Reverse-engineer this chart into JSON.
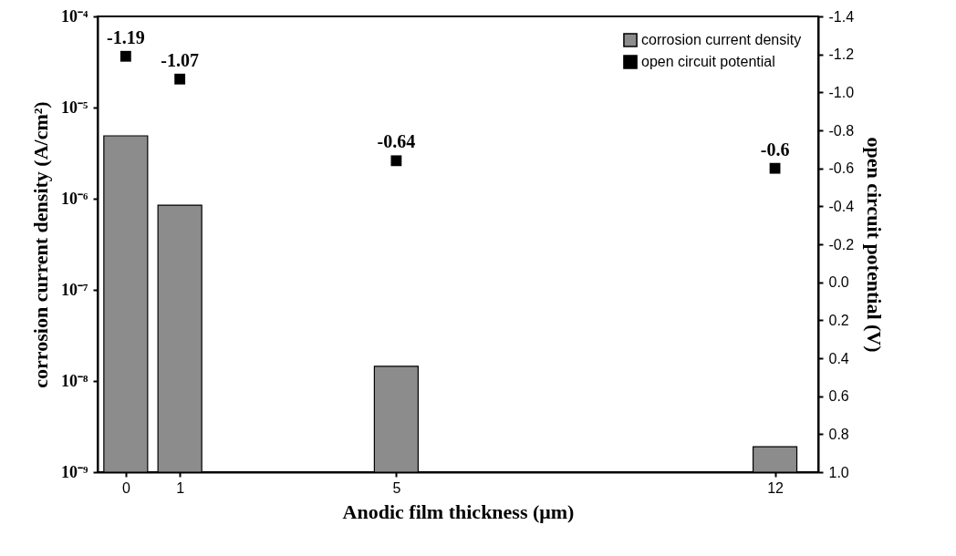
{
  "chart_data": {
    "type": "bar",
    "xlabel": "Anodic film thickness (μm)",
    "ylabel": "corrosion current density (A/cm²)",
    "y2label": "open circuit potential (V)",
    "x": [
      0,
      1,
      5,
      12
    ],
    "series": [
      {
        "name": "corrosion current density",
        "color": "#8c8c8c",
        "values": [
          4.9e-06,
          8.5e-07,
          1.45e-08,
          1.9e-09
        ]
      },
      {
        "name": "open circuit potential",
        "type": "scatter",
        "axis": "y2",
        "color": "#000000",
        "marker": "square",
        "data_labels": true,
        "values": [
          -1.19,
          -1.07,
          -0.64,
          -0.6
        ]
      }
    ],
    "xlim": [
      -0.52,
      12.8
    ],
    "xticks": [
      0,
      1,
      5,
      12
    ],
    "log": "y",
    "ylim": [
      1e-09,
      0.0001
    ],
    "yticks": [
      {
        "value": 1e-09,
        "label": "10⁻⁹"
      },
      {
        "value": 1e-08,
        "label": "10⁻⁸"
      },
      {
        "value": 1e-07,
        "label": "10⁻⁷"
      },
      {
        "value": 1e-06,
        "label": "10⁻⁶"
      },
      {
        "value": 1e-05,
        "label": "10⁻⁵"
      },
      {
        "value": 0.0001,
        "label": "10⁻⁴"
      }
    ],
    "y2lim": [
      1.0,
      -1.4
    ],
    "y2ticks": [
      {
        "value": 1.0,
        "label": "1.0"
      },
      0.8,
      0.6,
      0.4,
      0.2,
      {
        "value": 0,
        "label": "0.0"
      },
      -0.2,
      -0.4,
      -0.6,
      -0.8,
      {
        "value": -1.0,
        "label": "-1.0"
      },
      -1.2,
      -1.4
    ],
    "legend": "top right",
    "grid": false
  }
}
